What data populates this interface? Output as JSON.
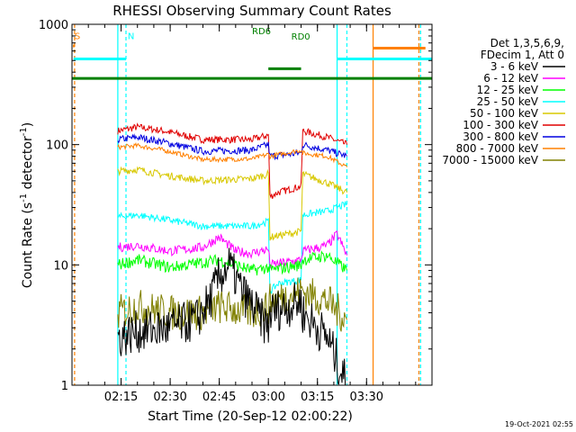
{
  "chart_data": {
    "type": "line",
    "title": "RHESSI Observing Summary Count Rates",
    "xlabel": "Start Time (20-Sep-12 02:00:22)",
    "ylabel_parts": [
      "Count Rate (s",
      "-1",
      " detector",
      "-1",
      ")"
    ],
    "yscale": "log",
    "ylim": [
      1,
      1000
    ],
    "xlim_min": [
      0,
      110
    ],
    "y_ticks": [
      {
        "v": 1,
        "label": "1"
      },
      {
        "v": 10,
        "label": "10"
      },
      {
        "v": 100,
        "label": "100"
      },
      {
        "v": 1000,
        "label": "1000"
      }
    ],
    "x_ticks": [
      {
        "t": 15,
        "label": "02:15"
      },
      {
        "t": 30,
        "label": "02:30"
      },
      {
        "t": 45,
        "label": "02:45"
      },
      {
        "t": 60,
        "label": "03:00"
      },
      {
        "t": 75,
        "label": "03:15"
      },
      {
        "t": 90,
        "label": "03:30"
      }
    ],
    "footer": "19-Oct-2021 02:55",
    "legend": {
      "header": [
        "Det 1,3,5,6,9,",
        "FDecim 1, Att 0"
      ],
      "placement": "right"
    },
    "series": [
      {
        "name": "3 - 6 keV",
        "color": "#000000"
      },
      {
        "name": "6 - 12 keV",
        "color": "#ff00ff"
      },
      {
        "name": "12 - 25 keV",
        "color": "#00ff00"
      },
      {
        "name": "25 - 50 keV",
        "color": "#00ffff"
      },
      {
        "name": "50 - 100 keV",
        "color": "#d8c800"
      },
      {
        "name": "100 - 300 keV",
        "color": "#e00000"
      },
      {
        "name": "300 - 800 keV",
        "color": "#0000e0"
      },
      {
        "name": "800 - 7000 keV",
        "color": "#ff8000"
      },
      {
        "name": "7000 - 15000 keV",
        "color": "#808000"
      }
    ],
    "flags": [
      {
        "label": "S",
        "color": "#ff8000",
        "text_t": 0.8,
        "text_y": 1.2
      },
      {
        "label": "N",
        "color": "#00ffff",
        "text_t": 17,
        "text_y": 1.2
      },
      {
        "label": "RD0",
        "color": "#008000",
        "text_t": 67,
        "text_y": 1.5
      },
      {
        "label": "RD6",
        "color": "#008000",
        "text_t": 55,
        "text_y": -1.5
      }
    ],
    "flag_bars": [
      {
        "color": "#00ffff",
        "t0": 0.5,
        "t1": 16.5,
        "y": 1.6
      },
      {
        "color": "#00ffff",
        "t0": 81,
        "t1": 110,
        "y": 1.6
      },
      {
        "color": "#ff8000",
        "t0": 0.3,
        "t1": 0.8,
        "y": 1.0
      },
      {
        "color": "#ff8000",
        "t0": 92,
        "t1": 108,
        "y": 1.1
      },
      {
        "color": "#008000",
        "t0": 0,
        "t1": 110,
        "y": 2.5
      },
      {
        "color": "#008000",
        "t0": 60,
        "t1": 70,
        "y": 2.05
      }
    ],
    "vlines": [
      {
        "t": 14,
        "color": "#00ffff",
        "dash": false
      },
      {
        "t": 16.5,
        "color": "#00ffff",
        "dash": true
      },
      {
        "t": 81,
        "color": "#00ffff",
        "dash": false
      },
      {
        "t": 84,
        "color": "#00ffff",
        "dash": true
      },
      {
        "t": 92,
        "color": "#ff8000",
        "dash": false
      },
      {
        "t": 0.8,
        "color": "#ff8000",
        "dash": true
      },
      {
        "t": 106,
        "color": "#ff8000",
        "dash": true
      },
      {
        "t": 106.5,
        "color": "#00ffff",
        "dash": true
      }
    ],
    "curves": [
      {
        "series": 5,
        "noise": 0.03,
        "pts": [
          [
            14,
            130
          ],
          [
            20,
            140
          ],
          [
            28,
            130
          ],
          [
            40,
            110
          ],
          [
            55,
            110
          ],
          [
            60,
            120
          ],
          [
            60.5,
            37
          ],
          [
            63,
            40
          ],
          [
            70,
            45
          ],
          [
            70.5,
            130
          ],
          [
            78,
            115
          ],
          [
            84,
            100
          ]
        ]
      },
      {
        "series": 6,
        "noise": 0.03,
        "pts": [
          [
            14,
            110
          ],
          [
            20,
            115
          ],
          [
            28,
            105
          ],
          [
            40,
            88
          ],
          [
            55,
            90
          ],
          [
            60,
            100
          ],
          [
            60.5,
            80
          ],
          [
            70,
            85
          ],
          [
            70.5,
            100
          ],
          [
            78,
            90
          ],
          [
            84,
            80
          ]
        ]
      },
      {
        "series": 7,
        "noise": 0.02,
        "pts": [
          [
            14,
            95
          ],
          [
            20,
            98
          ],
          [
            28,
            90
          ],
          [
            40,
            75
          ],
          [
            55,
            76
          ],
          [
            60,
            83
          ],
          [
            60.5,
            80
          ],
          [
            70,
            90
          ],
          [
            70.5,
            85
          ],
          [
            78,
            80
          ],
          [
            84,
            65
          ]
        ]
      },
      {
        "series": 4,
        "noise": 0.03,
        "pts": [
          [
            14,
            60
          ],
          [
            20,
            62
          ],
          [
            28,
            56
          ],
          [
            40,
            50
          ],
          [
            55,
            52
          ],
          [
            60,
            57
          ],
          [
            60.5,
            17
          ],
          [
            70,
            19
          ],
          [
            70.5,
            57
          ],
          [
            78,
            48
          ],
          [
            84,
            40
          ]
        ]
      },
      {
        "series": 3,
        "noise": 0.03,
        "pts": [
          [
            14,
            25
          ],
          [
            20,
            26
          ],
          [
            28,
            24
          ],
          [
            40,
            21
          ],
          [
            55,
            21
          ],
          [
            60,
            23
          ],
          [
            60.5,
            6
          ],
          [
            63,
            7
          ],
          [
            70,
            7.5
          ],
          [
            70.5,
            26
          ],
          [
            78,
            28
          ],
          [
            84,
            32
          ]
        ]
      },
      {
        "series": 1,
        "noise": 0.04,
        "pts": [
          [
            14,
            14
          ],
          [
            20,
            14.5
          ],
          [
            30,
            13
          ],
          [
            40,
            14
          ],
          [
            45,
            17
          ],
          [
            50,
            13
          ],
          [
            55,
            12.5
          ],
          [
            60,
            13.5
          ],
          [
            60.5,
            10
          ],
          [
            70,
            11
          ],
          [
            70.5,
            13
          ],
          [
            78,
            14.5
          ],
          [
            81,
            18
          ],
          [
            84,
            12
          ]
        ]
      },
      {
        "series": 2,
        "noise": 0.05,
        "pts": [
          [
            14,
            10
          ],
          [
            20,
            11
          ],
          [
            30,
            9.5
          ],
          [
            40,
            10.5
          ],
          [
            45,
            11
          ],
          [
            55,
            9
          ],
          [
            60,
            9.5
          ],
          [
            60.5,
            9
          ],
          [
            70,
            10
          ],
          [
            70.5,
            11
          ],
          [
            78,
            12
          ],
          [
            84,
            9
          ]
        ]
      },
      {
        "series": 8,
        "noise": 0.15,
        "pts": [
          [
            14,
            4
          ],
          [
            20,
            4.5
          ],
          [
            30,
            4
          ],
          [
            40,
            4
          ],
          [
            45,
            4.5
          ],
          [
            55,
            4
          ],
          [
            60,
            4.5
          ],
          [
            60.5,
            5
          ],
          [
            70,
            6
          ],
          [
            70.5,
            6
          ],
          [
            78,
            5
          ],
          [
            84,
            3.5
          ]
        ]
      },
      {
        "series": 0,
        "noise": 0.18,
        "pts": [
          [
            14,
            2.5
          ],
          [
            20,
            2.8
          ],
          [
            30,
            3
          ],
          [
            38,
            3.5
          ],
          [
            42,
            5
          ],
          [
            45,
            8
          ],
          [
            48,
            10
          ],
          [
            52,
            6
          ],
          [
            58,
            3.5
          ],
          [
            60,
            3
          ],
          [
            60.5,
            4
          ],
          [
            70,
            5
          ],
          [
            70.5,
            4
          ],
          [
            78,
            2.5
          ],
          [
            84,
            1
          ]
        ]
      }
    ]
  }
}
